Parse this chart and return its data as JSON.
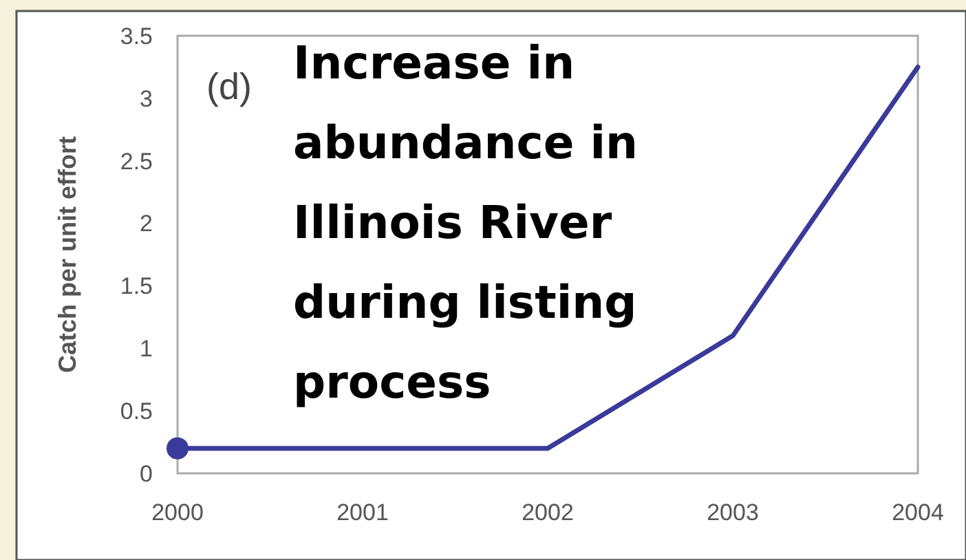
{
  "chart_data": {
    "type": "line",
    "ylabel": "Catch per unit effort",
    "x": [
      2000,
      2001,
      2002,
      2003,
      2004
    ],
    "series": [
      {
        "color": "#3a3a9a",
        "values": [
          0.2,
          0.2,
          0.2,
          1.1,
          3.25
        ]
      },
      {
        "type": "scatter",
        "color": "#3a3a9a",
        "x": [
          2000
        ],
        "values": [
          0.2
        ]
      }
    ],
    "xlim": [
      2000,
      2004
    ],
    "xticks": [
      2000,
      2001,
      2002,
      2003,
      2004
    ],
    "ylim": [
      0,
      3.5
    ],
    "yticks": [
      0,
      0.5,
      1,
      1.5,
      2,
      2.5,
      3,
      3.5
    ],
    "annotations": [
      "(d)",
      "Increase in\nabundance in\nIllinois River\nduring listing\nprocess"
    ],
    "grid": false
  }
}
